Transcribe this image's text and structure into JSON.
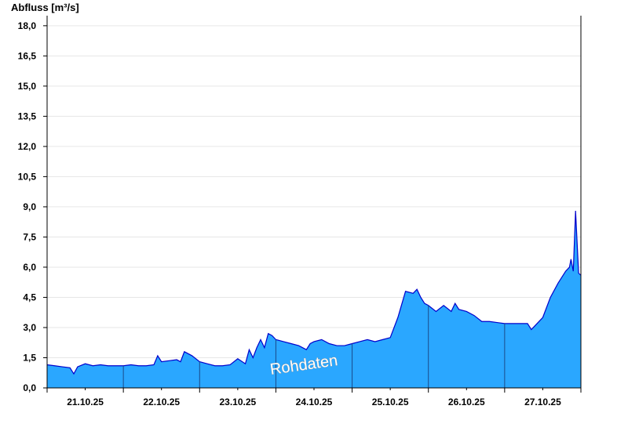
{
  "chart_data": {
    "type": "area",
    "title": "",
    "ylabel": "Abfluss [m³/s]",
    "xlabel": "",
    "ylim": [
      0,
      18.5
    ],
    "y_ticks": [
      "0,0",
      "1,5",
      "3,0",
      "4,5",
      "6,0",
      "7,5",
      "9,0",
      "10,5",
      "12,0",
      "13,5",
      "15,0",
      "16,5",
      "18,0"
    ],
    "x_tick_labels": [
      "21.10.25",
      "22.10.25",
      "23.10.25",
      "24.10.25",
      "25.10.25",
      "26.10.25",
      "27.10.25"
    ],
    "grid": "horizontal",
    "watermark": "Rohdaten",
    "colors": {
      "fill": "#2aa7ff",
      "line": "#0000cc",
      "grid": "#e6e6e6",
      "axis": "#000000"
    },
    "series": [
      {
        "x": [
          0,
          0.1,
          0.2,
          0.3,
          0.35,
          0.4,
          0.5,
          0.6,
          0.7,
          0.8,
          0.9,
          1.0,
          1.1,
          1.2,
          1.3,
          1.4,
          1.45,
          1.5,
          1.6,
          1.7,
          1.75,
          1.8,
          1.9,
          2.0,
          2.1,
          2.2,
          2.3,
          2.4,
          2.5,
          2.6,
          2.65,
          2.7,
          2.75,
          2.8,
          2.85,
          2.9,
          2.95,
          3.0,
          3.1,
          3.2,
          3.3,
          3.4,
          3.45,
          3.5,
          3.6,
          3.7,
          3.8,
          3.9,
          4.0,
          4.1,
          4.2,
          4.3,
          4.4,
          4.5,
          4.6,
          4.7,
          4.8,
          4.85,
          4.9,
          4.95,
          5.0,
          5.1,
          5.2,
          5.3,
          5.35,
          5.4,
          5.5,
          5.6,
          5.7,
          5.8,
          5.9,
          6.0,
          6.1,
          6.2,
          6.3,
          6.35,
          6.4,
          6.5,
          6.6,
          6.7,
          6.8,
          6.85,
          6.87,
          6.9,
          6.93,
          6.97,
          7.0
        ],
        "y": [
          1.15,
          1.1,
          1.05,
          1.0,
          0.7,
          1.05,
          1.2,
          1.1,
          1.15,
          1.1,
          1.1,
          1.1,
          1.15,
          1.1,
          1.1,
          1.15,
          1.6,
          1.3,
          1.35,
          1.4,
          1.3,
          1.8,
          1.6,
          1.3,
          1.2,
          1.1,
          1.1,
          1.15,
          1.45,
          1.2,
          1.9,
          1.5,
          2.0,
          2.4,
          2.0,
          2.7,
          2.6,
          2.4,
          2.3,
          2.2,
          2.1,
          1.9,
          2.2,
          2.3,
          2.4,
          2.2,
          2.1,
          2.1,
          2.2,
          2.3,
          2.4,
          2.3,
          2.4,
          2.5,
          3.5,
          4.8,
          4.7,
          4.9,
          4.5,
          4.2,
          4.1,
          3.8,
          4.1,
          3.8,
          4.2,
          3.9,
          3.8,
          3.6,
          3.3,
          3.3,
          3.25,
          3.2,
          3.2,
          3.2,
          3.2,
          2.9,
          3.1,
          3.5,
          4.5,
          5.2,
          5.8,
          6.0,
          6.4,
          5.8,
          8.8,
          5.7,
          5.6
        ]
      }
    ]
  }
}
